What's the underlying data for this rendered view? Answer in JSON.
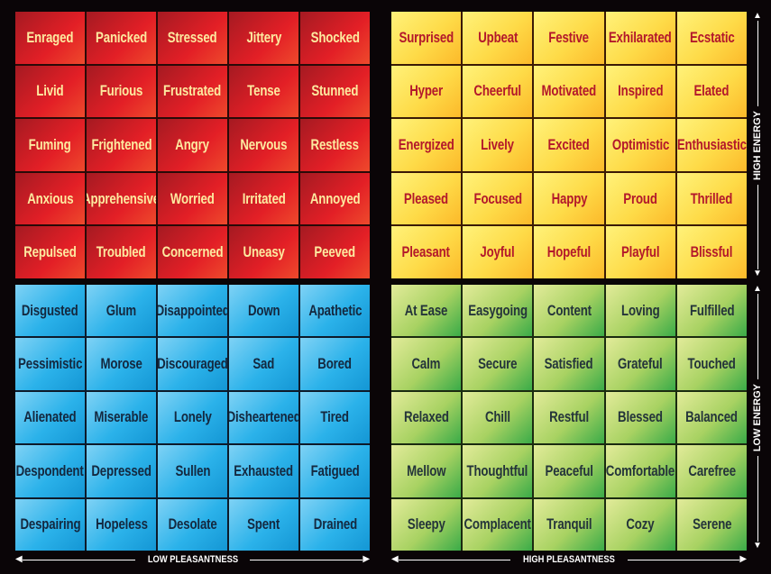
{
  "quadrants": {
    "red": [
      "Enraged",
      "Panicked",
      "Stressed",
      "Jittery",
      "Shocked",
      "Livid",
      "Furious",
      "Frustrated",
      "Tense",
      "Stunned",
      "Fuming",
      "Frightened",
      "Angry",
      "Nervous",
      "Restless",
      "Anxious",
      "Apprehensive",
      "Worried",
      "Irritated",
      "Annoyed",
      "Repulsed",
      "Troubled",
      "Concerned",
      "Uneasy",
      "Peeved"
    ],
    "yellow": [
      "Surprised",
      "Upbeat",
      "Festive",
      "Exhilarated",
      "Ecstatic",
      "Hyper",
      "Cheerful",
      "Motivated",
      "Inspired",
      "Elated",
      "Energized",
      "Lively",
      "Excited",
      "Optimistic",
      "Enthusiastic",
      "Pleased",
      "Focused",
      "Happy",
      "Proud",
      "Thrilled",
      "Pleasant",
      "Joyful",
      "Hopeful",
      "Playful",
      "Blissful"
    ],
    "blue": [
      "Disgusted",
      "Glum",
      "Disappointed",
      "Down",
      "Apathetic",
      "Pessimistic",
      "Morose",
      "Discouraged",
      "Sad",
      "Bored",
      "Alienated",
      "Miserable",
      "Lonely",
      "Disheartened",
      "Tired",
      "Despondent",
      "Depressed",
      "Sullen",
      "Exhausted",
      "Fatigued",
      "Despairing",
      "Hopeless",
      "Desolate",
      "Spent",
      "Drained"
    ],
    "green": [
      "At Ease",
      "Easygoing",
      "Content",
      "Loving",
      "Fulfilled",
      "Calm",
      "Secure",
      "Satisfied",
      "Grateful",
      "Touched",
      "Relaxed",
      "Chill",
      "Restful",
      "Blessed",
      "Balanced",
      "Mellow",
      "Thoughtful",
      "Peaceful",
      "Comfortable",
      "Carefree",
      "Sleepy",
      "Complacent",
      "Tranquil",
      "Cozy",
      "Serene"
    ]
  },
  "axes": {
    "low_pleasantness": "LOW PLEASANTNESS",
    "high_pleasantness": "HIGH PLEASANTNESS",
    "high_energy": "HIGH ENERGY",
    "low_energy": "LOW ENERGY"
  },
  "colors": {
    "red": "#e31f26",
    "yellow": "#fedb48",
    "blue": "#2bb2ea",
    "green": "#a8d262"
  }
}
